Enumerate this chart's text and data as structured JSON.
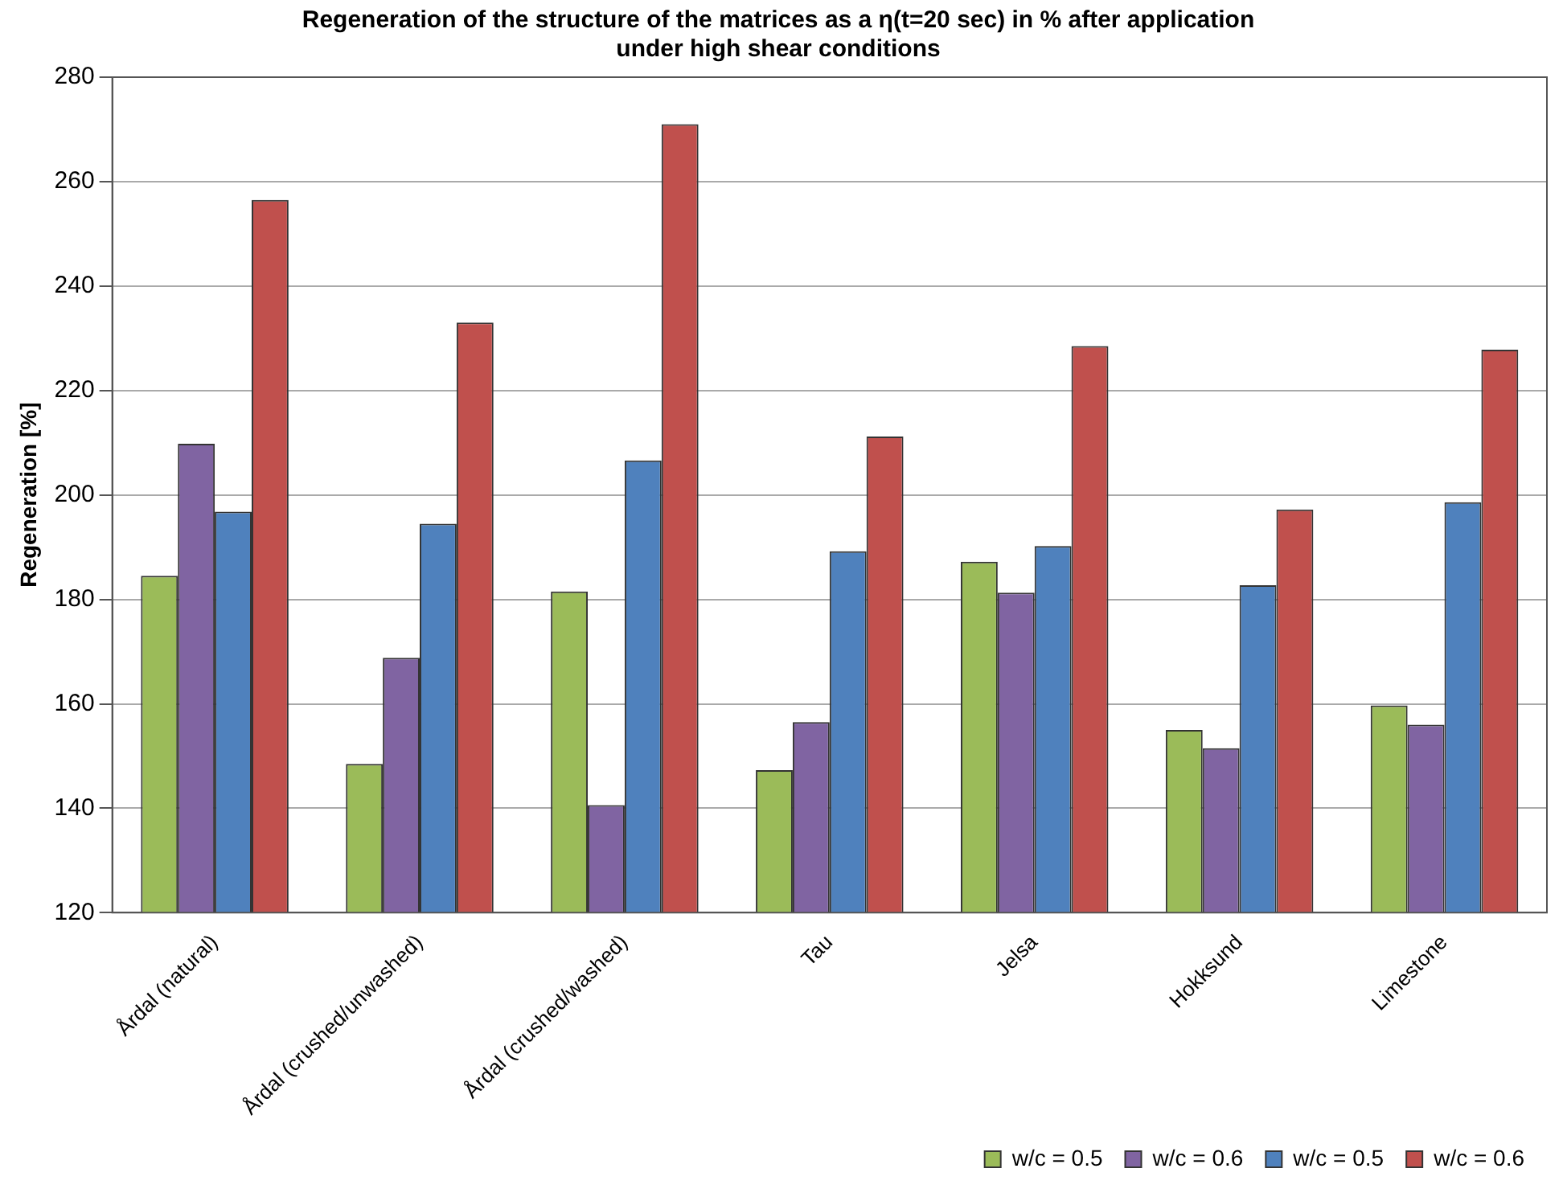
{
  "chart_data": {
    "type": "bar",
    "title": [
      "Regeneration of the structure of the matrices as a η(t=20 sec) in % after application",
      "under high shear conditions"
    ],
    "ylabel": "Regeneration [%]",
    "categories": [
      "Årdal (natural)",
      "Årdal (crushed/unwashed)",
      "Årdal (crushed/washed)",
      "Tau",
      "Jelsa",
      "Hokksund",
      "Limestone"
    ],
    "series": [
      {
        "name": "w/c = 0.5",
        "color": "#9bbb59",
        "values": [
          184.5,
          148.5,
          181.5,
          147.3,
          187.2,
          155,
          159.7
        ]
      },
      {
        "name": "w/c = 0.6",
        "color": "#8064a2",
        "values": [
          209.8,
          168.8,
          140.6,
          156.5,
          181.3,
          151.5,
          156
        ]
      },
      {
        "name": "w/c = 0.5",
        "color": "#4f81bd",
        "values": [
          196.8,
          194.5,
          206.6,
          189.2,
          190.2,
          182.7,
          198.6
        ]
      },
      {
        "name": "w/c = 0.6",
        "color": "#c0504d",
        "values": [
          256.5,
          233,
          271,
          211.2,
          228.5,
          197.2,
          227.8
        ]
      }
    ],
    "ylim": [
      120,
      280
    ],
    "yticks": [
      120,
      140,
      160,
      180,
      200,
      220,
      240,
      260,
      280
    ],
    "grid": "y",
    "legend": "bottom right"
  }
}
